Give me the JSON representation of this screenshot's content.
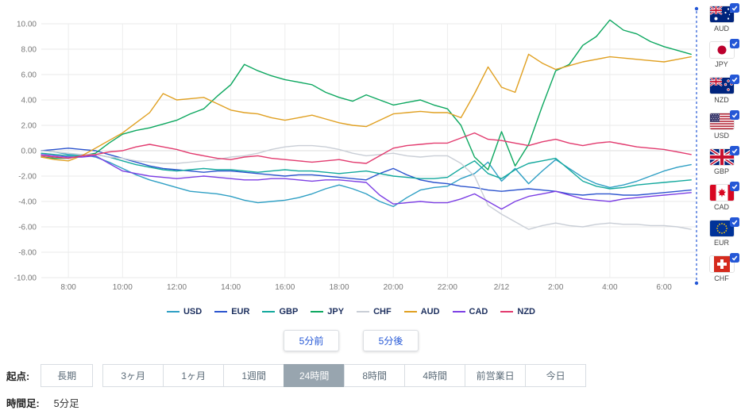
{
  "chart_data": {
    "type": "line",
    "title": "",
    "x_axis": {
      "labels": [
        "8:00",
        "10:00",
        "12:00",
        "14:00",
        "16:00",
        "18:00",
        "20:00",
        "22:00",
        "2/12",
        "2:00",
        "4:00",
        "6:00"
      ],
      "label_hours": [
        8,
        10,
        12,
        14,
        16,
        18,
        20,
        22,
        24,
        26,
        28,
        30
      ],
      "start_hour": 7,
      "end_hour": 31.2
    },
    "y_axis": {
      "min": -10,
      "max": 10,
      "tick_step": 2,
      "tick_labels": [
        "10.00",
        "8.00",
        "6.00",
        "4.00",
        "2.00",
        "0.00",
        "-2.00",
        "-4.00",
        "-6.00",
        "-8.00",
        "-10.00"
      ]
    },
    "x_step_hours": 0.5,
    "grid": true,
    "current_time_marker": true,
    "marker_color": "#2457D6",
    "series": [
      {
        "name": "USD",
        "color": "#2E9FC4",
        "values": [
          0,
          -0.1,
          -0.3,
          -0.3,
          -0.5,
          -0.9,
          -1.4,
          -1.9,
          -2.3,
          -2.6,
          -2.9,
          -3.2,
          -3.3,
          -3.4,
          -3.6,
          -3.9,
          -4.1,
          -4.0,
          -3.9,
          -3.7,
          -3.4,
          -3.0,
          -2.7,
          -3.0,
          -3.4,
          -4.0,
          -4.4,
          -3.7,
          -3.1,
          -2.9,
          -2.8,
          -2.2,
          -1.8,
          -0.9,
          -2.4,
          -1.4,
          -2.6,
          -1.6,
          -0.7,
          -1.4,
          -2.1,
          -2.6,
          -2.9,
          -2.7,
          -2.4,
          -2.0,
          -1.6,
          -1.3,
          -1.1
        ]
      },
      {
        "name": "EUR",
        "color": "#2B53CE",
        "values": [
          0,
          0.1,
          0.2,
          0.1,
          0,
          -0.3,
          -0.6,
          -0.9,
          -1.2,
          -1.4,
          -1.5,
          -1.6,
          -1.7,
          -1.6,
          -1.6,
          -1.7,
          -1.8,
          -1.9,
          -2.0,
          -1.9,
          -1.9,
          -2.0,
          -2.1,
          -2.2,
          -2.3,
          -1.8,
          -1.4,
          -1.9,
          -2.3,
          -2.5,
          -2.6,
          -2.8,
          -2.9,
          -3.1,
          -3.2,
          -3.1,
          -3.0,
          -3.1,
          -3.2,
          -3.4,
          -3.5,
          -3.4,
          -3.4,
          -3.5,
          -3.5,
          -3.4,
          -3.3,
          -3.2,
          -3.1
        ]
      },
      {
        "name": "GBP",
        "color": "#12A89D",
        "values": [
          -0.2,
          -0.3,
          -0.4,
          -0.4,
          -0.3,
          -0.5,
          -0.8,
          -1.1,
          -1.3,
          -1.5,
          -1.6,
          -1.5,
          -1.4,
          -1.5,
          -1.5,
          -1.6,
          -1.7,
          -1.6,
          -1.5,
          -1.6,
          -1.6,
          -1.7,
          -1.8,
          -1.7,
          -1.6,
          -1.8,
          -2.0,
          -2.1,
          -2.2,
          -2.2,
          -2.1,
          -1.4,
          -0.8,
          -1.8,
          -2.2,
          -1.5,
          -1.0,
          -0.8,
          -0.6,
          -1.5,
          -2.4,
          -2.8,
          -3.0,
          -2.9,
          -2.7,
          -2.6,
          -2.5,
          -2.4,
          -2.3
        ]
      },
      {
        "name": "JPY",
        "color": "#0CA75F",
        "values": [
          -0.5,
          -0.6,
          -0.6,
          -0.4,
          -0.2,
          0.6,
          1.3,
          1.6,
          1.8,
          2.1,
          2.4,
          2.9,
          3.3,
          4.3,
          5.2,
          6.8,
          6.3,
          5.9,
          5.6,
          5.4,
          5.2,
          4.6,
          4.2,
          3.9,
          4.4,
          4.0,
          3.6,
          3.8,
          4.0,
          3.6,
          3.3,
          2.0,
          -0.5,
          -1.5,
          1.5,
          -1.2,
          0.5,
          3.5,
          6.3,
          6.8,
          8.3,
          9.0,
          10.3,
          9.5,
          9.2,
          8.6,
          8.2,
          7.9,
          7.6
        ]
      },
      {
        "name": "CHF",
        "color": "#C9CED6",
        "values": [
          0,
          -0.1,
          -0.2,
          -0.3,
          -0.3,
          -0.5,
          -0.6,
          -0.8,
          -0.9,
          -1.0,
          -1.0,
          -0.9,
          -0.8,
          -0.7,
          -0.5,
          -0.4,
          -0.2,
          0.1,
          0.3,
          0.4,
          0.4,
          0.3,
          0.1,
          -0.2,
          -0.4,
          -0.3,
          -0.2,
          -0.4,
          -0.5,
          -0.4,
          -0.4,
          -1.0,
          -2.0,
          -4.3,
          -5.0,
          -5.6,
          -6.2,
          -5.9,
          -5.7,
          -5.9,
          -6.0,
          -5.8,
          -5.7,
          -5.8,
          -5.8,
          -5.9,
          -5.9,
          -6.0,
          -6.2
        ]
      },
      {
        "name": "AUD",
        "color": "#E0A021",
        "values": [
          -0.5,
          -0.7,
          -0.8,
          -0.4,
          0.2,
          0.8,
          1.4,
          2.2,
          3.0,
          4.5,
          4.0,
          4.1,
          4.2,
          3.7,
          3.2,
          3.0,
          2.9,
          2.6,
          2.4,
          2.6,
          2.8,
          2.5,
          2.2,
          2.0,
          1.9,
          2.4,
          2.9,
          3.0,
          3.1,
          3.0,
          3.0,
          2.6,
          4.5,
          6.6,
          5.0,
          4.6,
          7.6,
          6.9,
          6.4,
          6.7,
          7.0,
          7.2,
          7.4,
          7.3,
          7.2,
          7.1,
          7.0,
          7.2,
          7.4
        ]
      },
      {
        "name": "CAD",
        "color": "#7C3FE4",
        "values": [
          -0.3,
          -0.4,
          -0.5,
          -0.5,
          -0.4,
          -1.0,
          -1.6,
          -1.8,
          -2.0,
          -2.1,
          -2.2,
          -2.1,
          -2.0,
          -2.1,
          -2.2,
          -2.3,
          -2.3,
          -2.2,
          -2.2,
          -2.3,
          -2.4,
          -2.3,
          -2.3,
          -2.4,
          -2.5,
          -3.5,
          -4.2,
          -4.1,
          -4.0,
          -4.1,
          -4.1,
          -3.8,
          -3.4,
          -4.0,
          -4.6,
          -4.0,
          -3.6,
          -3.4,
          -3.2,
          -3.5,
          -3.8,
          -3.9,
          -4.0,
          -3.8,
          -3.7,
          -3.6,
          -3.5,
          -3.4,
          -3.3
        ]
      },
      {
        "name": "NZD",
        "color": "#E23A6E",
        "values": [
          -0.4,
          -0.5,
          -0.6,
          -0.4,
          -0.3,
          -0.1,
          0,
          0.3,
          0.5,
          0.3,
          0.1,
          -0.2,
          -0.4,
          -0.6,
          -0.7,
          -0.5,
          -0.4,
          -0.6,
          -0.7,
          -0.8,
          -0.9,
          -0.8,
          -0.7,
          -0.9,
          -1.0,
          -0.4,
          0.2,
          0.4,
          0.5,
          0.6,
          0.6,
          1.0,
          1.4,
          0.9,
          0.8,
          0.6,
          0.4,
          0.7,
          0.9,
          0.6,
          0.4,
          0.6,
          0.7,
          0.5,
          0.3,
          0.2,
          0.1,
          -0.1,
          -0.3
        ]
      }
    ]
  },
  "controls": {
    "prev_button": "5分前",
    "next_button": "5分後"
  },
  "range_selector": {
    "label": "起点:",
    "selected": "24時間",
    "options": [
      {
        "key": "long-term",
        "label": "長期"
      },
      {
        "key": "3-months",
        "label": "3ヶ月"
      },
      {
        "key": "1-month",
        "label": "1ヶ月"
      },
      {
        "key": "1-week",
        "label": "1週間"
      },
      {
        "key": "24-hours",
        "label": "24時間"
      },
      {
        "key": "8-hours",
        "label": "8時間"
      },
      {
        "key": "4-hours",
        "label": "4時間"
      },
      {
        "key": "previous-business-day",
        "label": "前営業日"
      },
      {
        "key": "today",
        "label": "今日"
      }
    ]
  },
  "timeframe": {
    "label": "時間足:",
    "value": "5分足"
  },
  "sidebar": {
    "items": [
      {
        "code": "AUD",
        "checked": true
      },
      {
        "code": "JPY",
        "checked": true
      },
      {
        "code": "NZD",
        "checked": true
      },
      {
        "code": "USD",
        "checked": true
      },
      {
        "code": "GBP",
        "checked": true
      },
      {
        "code": "CAD",
        "checked": true
      },
      {
        "code": "EUR",
        "checked": true
      },
      {
        "code": "CHF",
        "checked": true
      }
    ]
  }
}
